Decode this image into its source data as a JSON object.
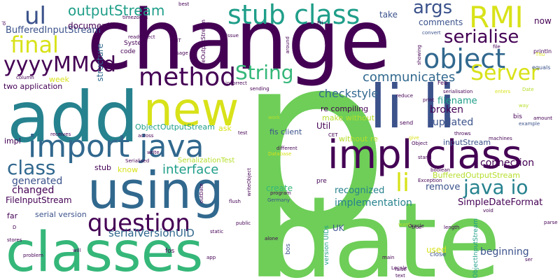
{
  "palette": {
    "dark_purple": "#440154",
    "indigo": "#3b528b",
    "blue": "#31688e",
    "teal": "#26828e",
    "sea_green": "#1f9e89",
    "green": "#35b779",
    "light_green": "#6ece58",
    "lime": "#b5de2b",
    "yellow": "#d8e219",
    "background": "#ffffff"
  },
  "words": [
    {
      "text": "p"
    },
    {
      "text": "change"
    },
    {
      "text": "date"
    },
    {
      "text": "add"
    },
    {
      "text": "classes"
    },
    {
      "text": "using"
    },
    {
      "text": "new"
    },
    {
      "text": "li li"
    },
    {
      "text": "impl class"
    },
    {
      "text": "import java"
    },
    {
      "text": "stub class"
    },
    {
      "text": "method"
    },
    {
      "text": "object"
    },
    {
      "text": "RMI"
    },
    {
      "text": "question"
    },
    {
      "text": "yyyyMMdd"
    },
    {
      "text": "final"
    },
    {
      "text": "ul"
    },
    {
      "text": "outputStream"
    },
    {
      "text": "String"
    },
    {
      "text": "Server"
    },
    {
      "text": "serialise"
    },
    {
      "text": "java io"
    },
    {
      "text": "class"
    },
    {
      "text": "args"
    },
    {
      "text": "li"
    },
    {
      "text": "interface"
    },
    {
      "text": "communicates"
    },
    {
      "text": "serialVersionUID"
    },
    {
      "text": "checkstyle"
    },
    {
      "text": "implementation"
    },
    {
      "text": "BufferedInputStream"
    },
    {
      "text": "generated"
    },
    {
      "text": "changed"
    },
    {
      "text": "FileInputStream"
    },
    {
      "text": "connection"
    },
    {
      "text": "SimpleDateFormat"
    },
    {
      "text": "beginning"
    },
    {
      "text": "remove"
    },
    {
      "text": "updated"
    },
    {
      "text": "broken"
    },
    {
      "text": "filename"
    },
    {
      "text": "recognized"
    },
    {
      "text": "create"
    },
    {
      "text": "comments"
    },
    {
      "text": "document"
    },
    {
      "text": "Util"
    },
    {
      "text": "structure"
    },
    {
      "text": "BufferedOutputStream"
    },
    {
      "text": "ObjectOutputStream"
    },
    {
      "text": "inputStream"
    },
    {
      "text": "re compiling"
    },
    {
      "text": "make without"
    },
    {
      "text": "without re"
    },
    {
      "text": "fis client"
    },
    {
      "text": "serial version"
    },
    {
      "text": "two application"
    },
    {
      "text": "SerializationTest"
    },
    {
      "text": "take"
    },
    {
      "text": "now"
    },
    {
      "text": "week"
    },
    {
      "text": "ask"
    },
    {
      "text": "know"
    },
    {
      "text": "stub"
    },
    {
      "text": "far"
    },
    {
      "text": "impl"
    },
    {
      "text": "System"
    },
    {
      "text": "code"
    },
    {
      "text": "used"
    },
    {
      "text": "UK"
    },
    {
      "text": "close"
    },
    {
      "text": "bos"
    },
    {
      "text": "version UIDs"
    },
    {
      "text": "ObjectInputStream"
    },
    {
      "text": "FileOutputStream"
    },
    {
      "text": "Feb"
    },
    {
      "text": "println"
    },
    {
      "text": "equals"
    },
    {
      "text": "file"
    },
    {
      "text": "timezones"
    },
    {
      "text": "readObject"
    },
    {
      "text": "GMT"
    },
    {
      "text": "Usage"
    },
    {
      "text": "issue"
    },
    {
      "text": "around"
    },
    {
      "text": "convert"
    },
    {
      "text": "Fri"
    },
    {
      "text": "showing"
    },
    {
      "text": "way"
    },
    {
      "text": "amount"
    },
    {
      "text": "example"
    },
    {
      "text": "enters"
    },
    {
      "text": "serialisation"
    },
    {
      "text": "machines"
    },
    {
      "text": "bis"
    },
    {
      "text": "send"
    },
    {
      "text": "throws"
    },
    {
      "text": "print"
    },
    {
      "text": "incorrect"
    },
    {
      "text": "reduce"
    },
    {
      "text": "sending"
    },
    {
      "text": "CET"
    },
    {
      "text": "work"
    },
    {
      "text": "test"
    },
    {
      "text": "receives"
    },
    {
      "text": "across"
    },
    {
      "text": "Serialised"
    },
    {
      "text": "write"
    },
    {
      "text": "writeObject"
    },
    {
      "text": "different"
    },
    {
      "text": "Database"
    },
    {
      "text": "stand"
    },
    {
      "text": "alone"
    },
    {
      "text": "boolean"
    },
    {
      "text": "Exception"
    },
    {
      "text": "Locale"
    },
    {
      "text": "void"
    },
    {
      "text": "parse"
    },
    {
      "text": "Oracle"
    },
    {
      "text": "Germany"
    },
    {
      "text": "program"
    },
    {
      "text": "pre"
    },
    {
      "text": "flush"
    },
    {
      "text": "public"
    },
    {
      "text": "static"
    },
    {
      "text": "fos"
    },
    {
      "text": "app"
    },
    {
      "text": "will"
    },
    {
      "text": "problem"
    },
    {
      "text": "stores"
    },
    {
      "text": "main"
    },
    {
      "text": "ser"
    },
    {
      "text": "false"
    },
    {
      "text": "true"
    },
    {
      "text": "length"
    },
    {
      "text": "want"
    },
    {
      "text": "Thu"
    },
    {
      "text": "best"
    },
    {
      "text": "ol"
    },
    {
      "text": "column"
    },
    {
      "text": "D"
    },
    {
      "text": "outDate"
    },
    {
      "text": "text"
    },
    {
      "text": "give"
    },
    {
      "text": "Object"
    },
    {
      "text": "Date"
    }
  ]
}
